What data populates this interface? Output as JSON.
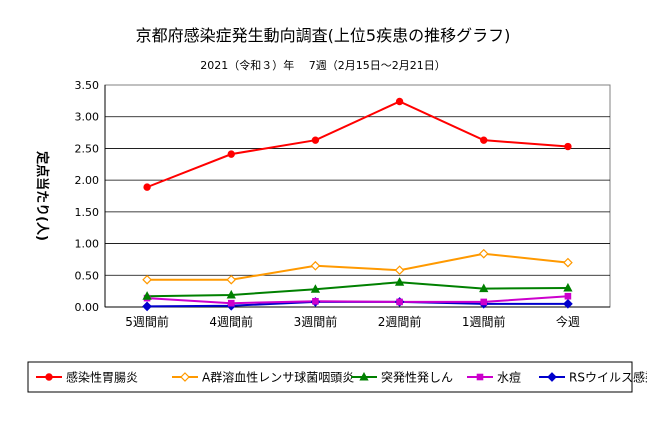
{
  "chart_data": {
    "type": "line",
    "title": "京都府感染症発生動向調査(上位5疾患の推移グラフ)",
    "subtitle": "2021（令和３）年　 7週（2月15日～2月21日）",
    "ylabel": "定点当たり(人)",
    "xlabel": "",
    "ylim": [
      0,
      3.5
    ],
    "ytick_labels": [
      "0.00",
      "0.50",
      "1.00",
      "1.50",
      "2.00",
      "2.50",
      "3.00",
      "3.50"
    ],
    "grid": "horizontal",
    "legend_position": "bottom",
    "categories": [
      "5週間前",
      "4週間前",
      "3週間前",
      "2週間前",
      "1週間前",
      "今週"
    ],
    "series": [
      {
        "name": "感染性胃腸炎",
        "color": "#ff0000",
        "marker": "circle",
        "values": [
          1.89,
          2.41,
          2.63,
          3.24,
          2.63,
          2.53
        ]
      },
      {
        "name": "A群溶血性レンサ球菌咽頭炎",
        "color": "#ff9900",
        "marker": "diamond-open",
        "values": [
          0.43,
          0.43,
          0.65,
          0.58,
          0.84,
          0.7
        ]
      },
      {
        "name": "突発性発しん",
        "color": "#008000",
        "marker": "triangle",
        "values": [
          0.17,
          0.19,
          0.28,
          0.39,
          0.29,
          0.3
        ]
      },
      {
        "name": "水痘",
        "color": "#cc00cc",
        "marker": "square",
        "values": [
          0.14,
          0.06,
          0.09,
          0.08,
          0.08,
          0.17
        ]
      },
      {
        "name": "RSウイルス感染症",
        "color": "#0000cc",
        "marker": "diamond",
        "values": [
          0.01,
          0.02,
          0.08,
          0.08,
          0.05,
          0.05
        ]
      }
    ]
  }
}
